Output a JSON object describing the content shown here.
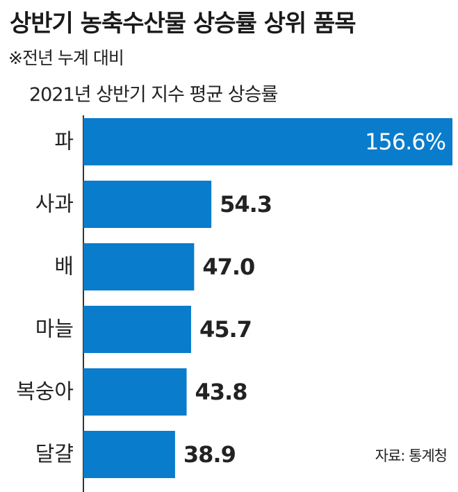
{
  "header": {
    "title": "상반기 농축수산물 상승률 상위 품목",
    "subtitle": "※전년 누계 대비",
    "metric": "2021년 상반기 지수 평균 상승률"
  },
  "footer": {
    "source": "자료: 통계청"
  },
  "colors": {
    "bar": "#0a7ccc",
    "axis": "#333333",
    "text": "#222222"
  },
  "chart_data": {
    "type": "bar",
    "orientation": "horizontal",
    "title": "상반기 농축수산물 상승률 상위 품목",
    "subtitle": "2021년 상반기 지수 평균 상승률",
    "categories": [
      "파",
      "사과",
      "배",
      "마늘",
      "복숭아",
      "달걀"
    ],
    "values": [
      156.6,
      54.3,
      47.0,
      45.7,
      43.8,
      38.9
    ],
    "value_labels": [
      "156.6%",
      "54.3",
      "47.0",
      "45.7",
      "43.8",
      "38.9"
    ],
    "xlim": [
      0,
      156.6
    ],
    "grid": false
  }
}
